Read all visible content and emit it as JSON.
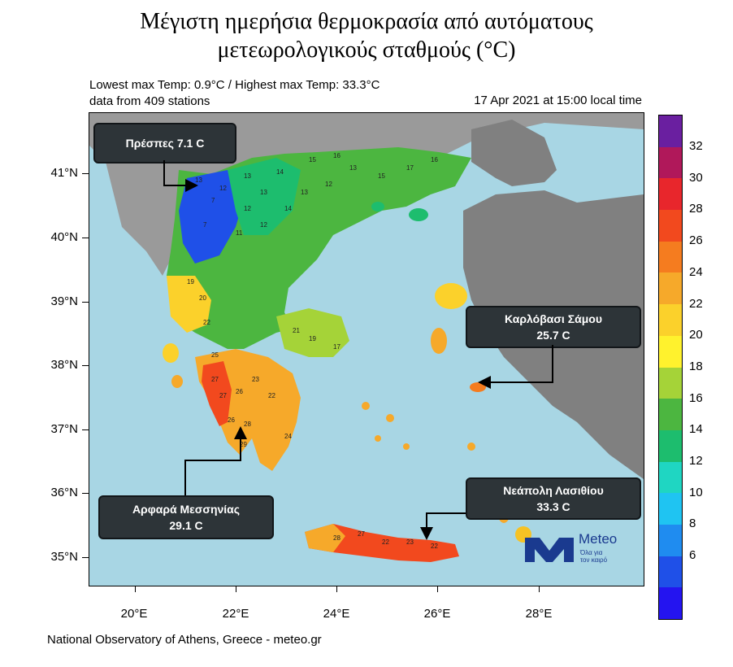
{
  "title": {
    "line1": "Μέγιστη ημερήσια θερμοκρασία από αυτόματους",
    "line2": "μετεωρολογικούς σταθμούς (°C)"
  },
  "subtitle": {
    "stats": "Lowest max Temp: 0.9°C / Highest max Temp: 33.3°C",
    "stations": "data from 409 stations",
    "datetime": "17 Apr 2021 at 15:00 local time"
  },
  "axes": {
    "lat_labels": [
      "41°N",
      "40°N",
      "39°N",
      "38°N",
      "37°N",
      "36°N",
      "35°N"
    ],
    "lon_labels": [
      "20°E",
      "22°E",
      "24°E",
      "26°E",
      "28°E"
    ]
  },
  "colorbar": {
    "labels": [
      "32",
      "30",
      "28",
      "26",
      "24",
      "22",
      "20",
      "18",
      "16",
      "14",
      "12",
      "10",
      "8",
      "6"
    ],
    "colors": [
      "#6a1fa0",
      "#b0185a",
      "#e8262c",
      "#f2491e",
      "#f57c1f",
      "#f6a92a",
      "#fbd12b",
      "#fff22d",
      "#a5d338",
      "#4cb640",
      "#1dbd6e",
      "#1fd6c2",
      "#1fc4f2",
      "#1f8cf0",
      "#1f50e8",
      "#2414f0"
    ]
  },
  "callouts": {
    "prespes": "Πρέσπες  7.1 C",
    "karlovasi_name": "Καρλόβασι Σάμου",
    "karlovasi_value": "25.7 C",
    "arfara_name": "Αρφαρά Μεσσηνίας",
    "arfara_value": "29.1 C",
    "neapoli_name": "Νεάπολη Λασιθίου",
    "neapoli_value": "33.3 C"
  },
  "logo": {
    "name": "Meteo",
    "tagline_1": "Όλα για",
    "tagline_2": "τον καιρό",
    "brand_color": "#1a3a8f",
    "sun_color": "#f6c224"
  },
  "footer": "National Observatory of Athens, Greece - meteo.gr",
  "map_colors": {
    "sea": "#a8d6e4",
    "foreign_land": "#9a9a9a",
    "turkey": "#808080"
  },
  "station_labels": [
    "13",
    "12",
    "13",
    "14",
    "15",
    "16",
    "13",
    "12",
    "7",
    "7",
    "11",
    "12",
    "14",
    "13",
    "12",
    "13",
    "15",
    "17",
    "16",
    "19",
    "20",
    "22",
    "25",
    "27",
    "27",
    "26",
    "23",
    "22",
    "26",
    "28",
    "29",
    "28",
    "27",
    "22",
    "23",
    "22",
    "24",
    "21",
    "19",
    "17"
  ]
}
